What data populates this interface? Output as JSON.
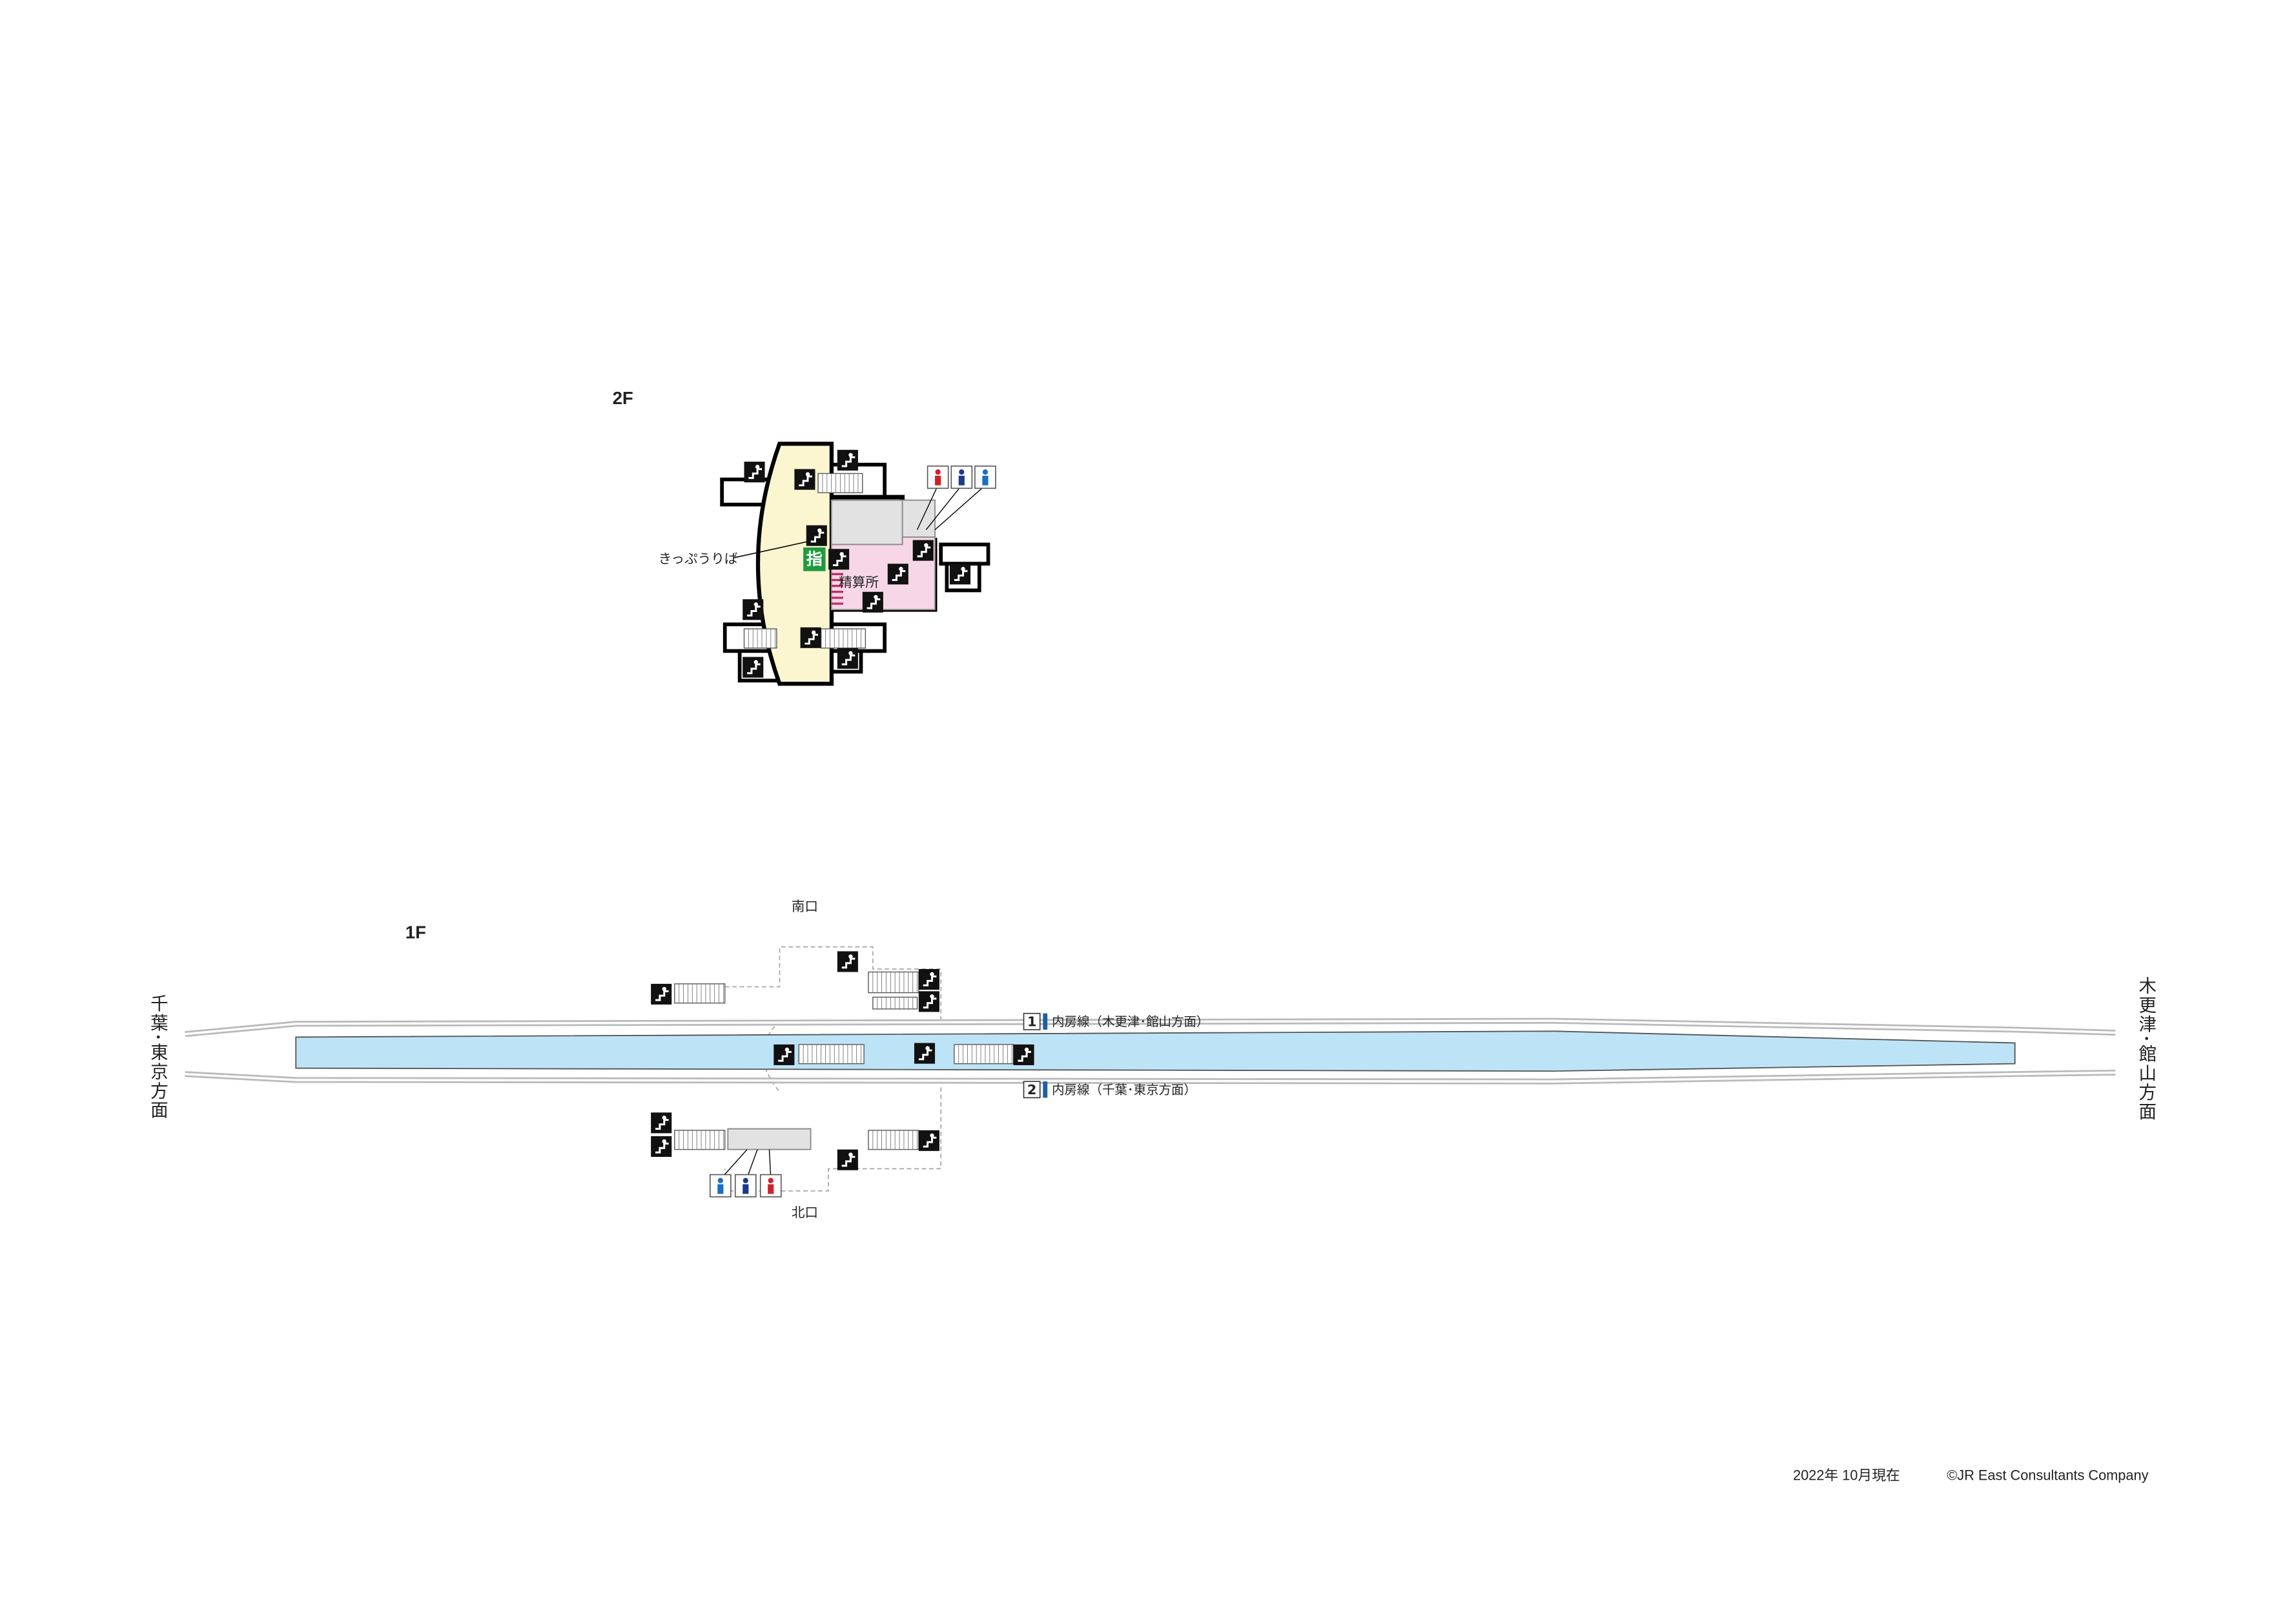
{
  "floors": [
    {
      "label": "2F",
      "ticket_office": "きっぷうりば",
      "reserved_seat": "指",
      "fare_adjustment": "精算所"
    },
    {
      "label": "1F",
      "south_exit": "南口",
      "north_exit": "北口",
      "tracks": [
        {
          "number": "1",
          "line": "内房線（木更津･館山方面）"
        },
        {
          "number": "2",
          "line": "内房線（千葉･東京方面）"
        }
      ],
      "direction_left": "千葉･東京方面",
      "direction_right": "木更津･館山方面"
    }
  ],
  "footer": {
    "date": "2022年 10月現在",
    "copyright": "©JR East Consultants Company"
  }
}
